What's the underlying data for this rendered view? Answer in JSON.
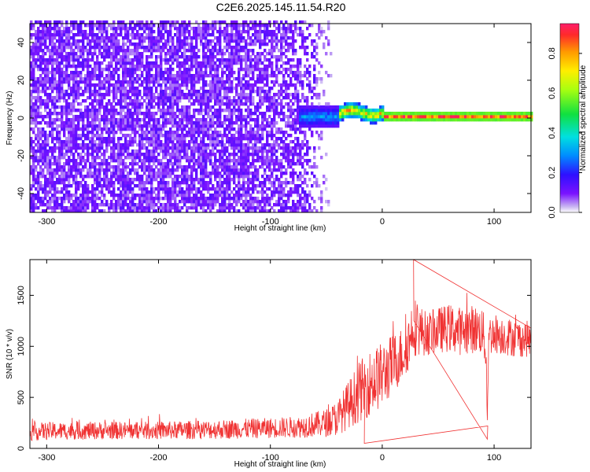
{
  "title": "C2E6.2025.145.11.54.R20",
  "colors": {
    "snr_line": "#f03232",
    "spectrogram_low": "#7a12ff",
    "frame": "#000000",
    "background": "#ffffff"
  },
  "chart_data": [
    {
      "type": "heatmap",
      "title": "C2E6.2025.145.11.54.R20",
      "xlabel": "Height of straight line (km)",
      "ylabel": "Frequency (Hz)",
      "xlim": [
        -315,
        133
      ],
      "ylim": [
        -50,
        50
      ],
      "x_ticks": [
        -300,
        -200,
        -100,
        0,
        100
      ],
      "y_ticks": [
        -40,
        -20,
        0,
        20,
        40
      ],
      "grid": false,
      "colorbar": {
        "label": "Normalized spectral amplitude",
        "range": [
          0,
          0.95
        ],
        "ticks": [
          0.0,
          0.2,
          0.4,
          0.6,
          0.8
        ],
        "tick_labels": [
          "0.0",
          "0.2",
          "0.4",
          "0.6",
          "0.8"
        ],
        "colormap": "rainbow (purple to red)"
      },
      "features": [
        {
          "x_range": [
            -315,
            -75
          ],
          "freq_range": [
            -50,
            50
          ],
          "amplitude_range": [
            0.0,
            0.15
          ],
          "description": "broadband noise"
        },
        {
          "x_range": [
            -75,
            -40
          ],
          "freq_center": 0,
          "freq_halfwidth": 6,
          "amplitude_range": [
            0.1,
            0.35
          ]
        },
        {
          "x_range": [
            -40,
            0
          ],
          "freq_center": 2,
          "freq_halfwidth": 4,
          "amplitude_range": [
            0.2,
            0.9
          ]
        },
        {
          "x_range": [
            0,
            133
          ],
          "freq_center": 0,
          "freq_halfwidth": 2,
          "amplitude_range": [
            0.5,
            0.95
          ]
        }
      ]
    },
    {
      "type": "line",
      "xlabel": "Height of straight line (km)",
      "ylabel": "SNR (10 * v/v)",
      "xlim": [
        -315,
        133
      ],
      "ylim": [
        0,
        1850
      ],
      "x_ticks": [
        -300,
        -200,
        -100,
        0,
        100
      ],
      "y_ticks": [
        0,
        500,
        1000,
        1500
      ],
      "grid": false,
      "series": [
        {
          "x": [
            -315,
            -300,
            -250,
            -200,
            -150,
            -100,
            -75,
            -50,
            -40,
            -30,
            -20,
            -10,
            0,
            10,
            20,
            25,
            28,
            30,
            40,
            50,
            60,
            70,
            80,
            90,
            93,
            94,
            95,
            100,
            110,
            120,
            133
          ],
          "y_mean": [
            160,
            170,
            175,
            175,
            185,
            200,
            210,
            250,
            300,
            430,
            560,
            650,
            720,
            830,
            950,
            1080,
            1250,
            1180,
            1120,
            1160,
            1180,
            1150,
            1170,
            1150,
            900,
            220,
            1100,
            1130,
            1100,
            1080,
            1070
          ],
          "y_spread": [
            70,
            70,
            70,
            70,
            75,
            80,
            85,
            110,
            140,
            190,
            240,
            260,
            260,
            240,
            210,
            230,
            280,
            220,
            170,
            180,
            190,
            190,
            190,
            190,
            120,
            50,
            160,
            160,
            150,
            150,
            140
          ],
          "notable": [
            {
              "x": 28,
              "y": 1850
            },
            {
              "x": 94,
              "y": 90
            },
            {
              "x": -16,
              "y": 50
            }
          ]
        }
      ]
    }
  ]
}
